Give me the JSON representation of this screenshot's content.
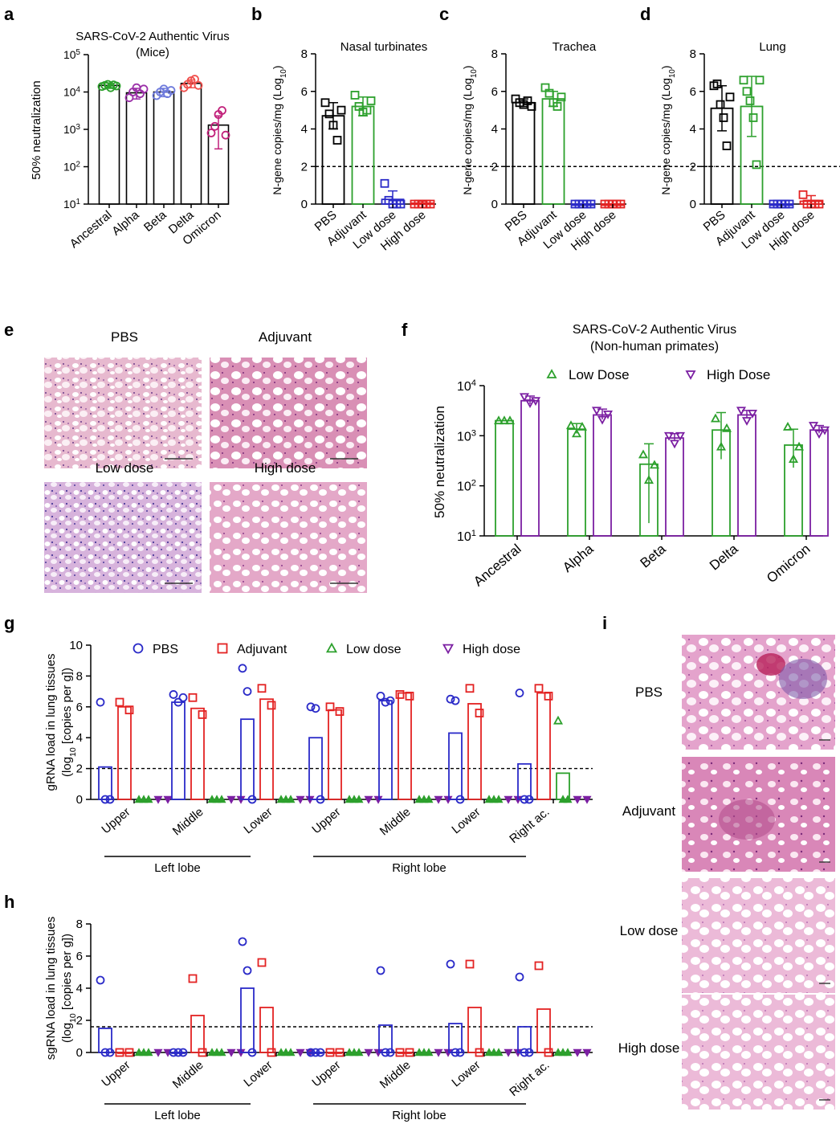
{
  "colors": {
    "black": "#000000",
    "green": "#2ca02c",
    "blue": "#2a2ac8",
    "red": "#e32222",
    "purple": "#7b1fa2",
    "pink": "#d6287a",
    "lblue": "#6f7bdc",
    "lgreen": "#23a133",
    "lred": "#f0504d"
  },
  "panel_labels": [
    "a",
    "b",
    "c",
    "d",
    "e",
    "f",
    "g",
    "h",
    "i"
  ],
  "panel_a": {
    "title": "SARS-CoV-2 Authentic Virus",
    "subtitle": "(Mice)",
    "ylabel": "50% neutralization",
    "yticks": [
      "10",
      "10",
      "10",
      "10",
      "10"
    ],
    "ytick_exp": [
      "1",
      "2",
      "3",
      "4",
      "5"
    ],
    "categories": [
      "Ancestral",
      "Alpha",
      "Beta",
      "Delta",
      "Omicron"
    ]
  },
  "panel_b": {
    "title": "Nasal turbinates",
    "ylabel": "N-gene copies/mg (Log",
    "ylabel_sub": "10",
    "ylabel_end": ")",
    "yticks": [
      "0",
      "2",
      "4",
      "6",
      "8"
    ],
    "categories": [
      "PBS",
      "Adjuvant",
      "Low dose",
      "High dose"
    ]
  },
  "panel_c": {
    "title": "Trachea",
    "ylabel": "N-gene copies/mg (Log",
    "ylabel_sub": "10",
    "ylabel_end": ")",
    "yticks": [
      "0",
      "2",
      "4",
      "6",
      "8"
    ],
    "categories": [
      "PBS",
      "Adjuvant",
      "Low dose",
      "High dose"
    ]
  },
  "panel_d": {
    "title": "Lung",
    "ylabel": "N-gene copies/mg (Log",
    "ylabel_sub": "10",
    "ylabel_end": ")",
    "yticks": [
      "0",
      "2",
      "4",
      "6",
      "8"
    ],
    "categories": [
      "PBS",
      "Adjuvant",
      "Low dose",
      "High dose"
    ]
  },
  "panel_e": {
    "labels": [
      "PBS",
      "Adjuvant",
      "Low dose",
      "High dose"
    ]
  },
  "panel_f": {
    "title": "SARS-CoV-2 Authentic Virus",
    "subtitle": "(Non-human primates)",
    "ylabel": "50% neutralization",
    "yticks": [
      "10",
      "10",
      "10",
      "10"
    ],
    "ytick_exp": [
      "1",
      "2",
      "3",
      "4"
    ],
    "legend": [
      "Low Dose",
      "High Dose"
    ],
    "categories": [
      "Ancestral",
      "Alpha",
      "Beta",
      "Delta",
      "Omicron"
    ]
  },
  "panel_g": {
    "ylabel1": "gRNA load in lung tissues",
    "ylabel2": "(log",
    "ylabel2_sub": "10",
    "ylabel2_end": " [copies per g])",
    "yticks": [
      "0",
      "2",
      "4",
      "6",
      "8",
      "10"
    ],
    "legend": [
      "PBS",
      "Adjuvant",
      "Low dose",
      "High dose"
    ],
    "categories": [
      "Upper",
      "Middle",
      "Lower",
      "Upper",
      "Middle",
      "Lower",
      "Right ac."
    ],
    "groups": [
      "Left lobe",
      "Right lobe"
    ]
  },
  "panel_h": {
    "ylabel1": "sgRNA load in lung tissues",
    "ylabel2": "(log",
    "ylabel2_sub": "10",
    "ylabel2_end": " [copies per g])",
    "yticks": [
      "0",
      "2",
      "4",
      "6",
      "8"
    ],
    "categories": [
      "Upper",
      "Middle",
      "Lower",
      "Upper",
      "Middle",
      "Lower",
      "Right ac."
    ],
    "groups": [
      "Left lobe",
      "Right lobe"
    ]
  },
  "panel_i": {
    "labels": [
      "PBS",
      "Adjuvant",
      "Low dose",
      "High dose"
    ]
  },
  "chart_data": [
    {
      "panel": "a",
      "type": "bar",
      "log_scale": true,
      "ylim": [
        10,
        100000
      ],
      "categories": [
        "Ancestral",
        "Alpha",
        "Beta",
        "Delta",
        "Omicron"
      ],
      "values": [
        15000,
        9500,
        10000,
        17000,
        1300
      ],
      "errors": [
        2500,
        3000,
        2500,
        4000,
        1000
      ],
      "points": [
        [
          14000,
          15000,
          16000,
          13000,
          15500,
          14500
        ],
        [
          7000,
          10000,
          13000,
          9000,
          12000
        ],
        [
          8000,
          10000,
          12000,
          9000,
          11000
        ],
        [
          13000,
          16000,
          20000,
          22000,
          15000
        ],
        [
          800,
          1200,
          2500,
          3200,
          700
        ]
      ]
    },
    {
      "panel": "b",
      "type": "bar",
      "ylim": [
        0,
        8
      ],
      "threshold": 2,
      "categories": [
        "PBS",
        "Adjuvant",
        "Low dose",
        "High dose"
      ],
      "values": [
        4.7,
        5.2,
        0.25,
        0.05
      ],
      "errors": [
        0.7,
        0.5,
        0.45,
        0.1
      ],
      "points": [
        [
          5.4,
          4.8,
          4.2,
          3.4,
          5.0
        ],
        [
          5.8,
          5.2,
          4.9,
          5.0,
          5.5
        ],
        [
          1.1,
          0.2,
          0.0,
          0.0,
          0.0
        ],
        [
          0,
          0,
          0,
          0,
          0
        ]
      ]
    },
    {
      "panel": "c",
      "type": "bar",
      "ylim": [
        0,
        8
      ],
      "threshold": 2,
      "categories": [
        "PBS",
        "Adjuvant",
        "Low dose",
        "High dose"
      ],
      "values": [
        5.4,
        5.6,
        0,
        0
      ],
      "errors": [
        0.2,
        0.4,
        0,
        0
      ],
      "points": [
        [
          5.6,
          5.4,
          5.3,
          5.5,
          5.2
        ],
        [
          6.2,
          5.9,
          5.4,
          5.2,
          5.7
        ],
        [
          0,
          0,
          0,
          0,
          0
        ],
        [
          0,
          0,
          0,
          0,
          0
        ]
      ]
    },
    {
      "panel": "d",
      "type": "bar",
      "ylim": [
        0,
        8
      ],
      "threshold": 2,
      "categories": [
        "PBS",
        "Adjuvant",
        "Low dose",
        "High dose"
      ],
      "values": [
        5.1,
        5.2,
        0,
        0.15
      ],
      "errors": [
        1.2,
        1.6,
        0,
        0.3
      ],
      "points": [
        [
          6.3,
          6.4,
          5.3,
          4.6,
          3.1,
          5.7
        ],
        [
          6.6,
          6.0,
          5.5,
          4.6,
          2.1,
          6.6
        ],
        [
          0,
          0,
          0,
          0,
          0
        ],
        [
          0.5,
          0,
          0,
          0,
          0
        ]
      ]
    },
    {
      "panel": "f",
      "type": "bar",
      "log_scale": true,
      "ylim": [
        10,
        10000
      ],
      "categories": [
        "Ancestral",
        "Alpha",
        "Beta",
        "Delta",
        "Omicron"
      ],
      "series": [
        {
          "name": "Low Dose",
          "values": [
            2000,
            1350,
            270,
            1300,
            650
          ],
          "errors": [
            0,
            400,
            420,
            1600,
            700
          ],
          "points": [
            [
              2000,
              2000,
              2000
            ],
            [
              1600,
              1100,
              1500
            ],
            [
              420,
              130,
              260
            ],
            [
              2200,
              600,
              1400
            ],
            [
              1500,
              340,
              600
            ]
          ]
        },
        {
          "name": "High Dose",
          "values": [
            5000,
            2600,
            900,
            2600,
            1300
          ],
          "errors": [
            1200,
            800,
            200,
            600,
            300
          ],
          "points": [
            [
              6000,
              4500,
              5000
            ],
            [
              3200,
              2100,
              2700
            ],
            [
              1000,
              700,
              1000
            ],
            [
              3200,
              2000,
              2800
            ],
            [
              1600,
              1100,
              1300
            ]
          ]
        }
      ]
    },
    {
      "panel": "g",
      "type": "bar",
      "ylim": [
        0,
        10
      ],
      "threshold": 2,
      "categories": [
        "Upper",
        "Middle",
        "Lower",
        "Upper",
        "Middle",
        "Lower",
        "Right ac."
      ],
      "series": [
        {
          "name": "PBS",
          "values": [
            2.1,
            6.3,
            5.2,
            4.0,
            6.4,
            4.3,
            2.3
          ],
          "points": [
            [
              6.3,
              0,
              0
            ],
            [
              6.8,
              6.3,
              6.6
            ],
            [
              8.5,
              7.0,
              0
            ],
            [
              6.0,
              5.9,
              0
            ],
            [
              6.7,
              6.3,
              6.4
            ],
            [
              6.5,
              6.4,
              0
            ],
            [
              6.9,
              0,
              0
            ]
          ]
        },
        {
          "name": "Adjuvant",
          "values": [
            6.0,
            5.9,
            6.5,
            5.8,
            6.9,
            6.2,
            6.9
          ],
          "points": [
            [
              6.3,
              5.8
            ],
            [
              6.6,
              5.5
            ],
            [
              7.2,
              6.1
            ],
            [
              6.0,
              5.7
            ],
            [
              6.8,
              6.7
            ],
            [
              7.2,
              5.6
            ],
            [
              7.2,
              6.7
            ]
          ]
        },
        {
          "name": "Low dose",
          "values": [
            0,
            0,
            0,
            0,
            0,
            0,
            1.7
          ],
          "points": [
            [
              0,
              0,
              0
            ],
            [
              0,
              0,
              0
            ],
            [
              0,
              0,
              0
            ],
            [
              0,
              0,
              0
            ],
            [
              0,
              0,
              0
            ],
            [
              0,
              0,
              0
            ],
            [
              5.1,
              0,
              0
            ]
          ]
        },
        {
          "name": "High dose",
          "values": [
            0,
            0,
            0,
            0,
            0,
            0,
            0
          ],
          "points": [
            [
              0,
              0
            ],
            [
              0,
              0
            ],
            [
              0,
              0
            ],
            [
              0,
              0
            ],
            [
              0,
              0
            ],
            [
              0,
              0
            ],
            [
              0,
              0
            ]
          ]
        }
      ]
    },
    {
      "panel": "h",
      "type": "bar",
      "ylim": [
        0,
        8
      ],
      "threshold": 1.6,
      "categories": [
        "Upper",
        "Middle",
        "Lower",
        "Upper",
        "Middle",
        "Lower",
        "Right ac."
      ],
      "series": [
        {
          "name": "PBS",
          "values": [
            1.5,
            0,
            4.0,
            0,
            1.7,
            1.8,
            1.6
          ],
          "points": [
            [
              4.5,
              0,
              0
            ],
            [
              0,
              0,
              0
            ],
            [
              6.9,
              5.1,
              0
            ],
            [
              0,
              0,
              0
            ],
            [
              5.1,
              0,
              0
            ],
            [
              5.5,
              0,
              0
            ],
            [
              4.7,
              0,
              0
            ]
          ]
        },
        {
          "name": "Adjuvant",
          "values": [
            0,
            2.3,
            2.8,
            0,
            0,
            2.8,
            2.7
          ],
          "points": [
            [
              0,
              0
            ],
            [
              4.6,
              0
            ],
            [
              5.6,
              0
            ],
            [
              0,
              0
            ],
            [
              0,
              0
            ],
            [
              5.5,
              0
            ],
            [
              5.4,
              0
            ]
          ]
        },
        {
          "name": "Low dose",
          "values": [
            0,
            0,
            0,
            0,
            0,
            0,
            0
          ],
          "points": [
            [
              0,
              0,
              0
            ],
            [
              0,
              0,
              0
            ],
            [
              0,
              0,
              0
            ],
            [
              0,
              0,
              0
            ],
            [
              0,
              0,
              0
            ],
            [
              0,
              0,
              0
            ],
            [
              0,
              0,
              0
            ]
          ]
        },
        {
          "name": "High dose",
          "values": [
            0,
            0,
            0,
            0,
            0,
            0,
            0
          ],
          "points": [
            [
              0,
              0
            ],
            [
              0,
              0
            ],
            [
              0,
              0
            ],
            [
              0,
              0
            ],
            [
              0,
              0
            ],
            [
              0,
              0
            ],
            [
              0,
              0
            ]
          ]
        }
      ]
    }
  ]
}
